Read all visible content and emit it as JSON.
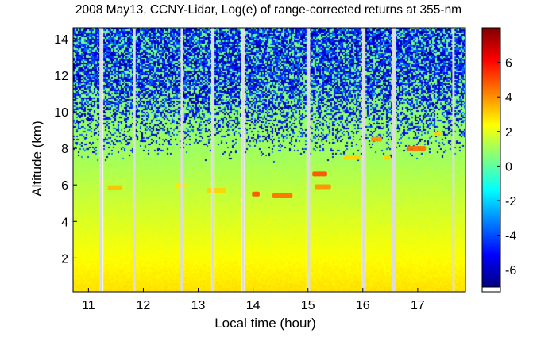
{
  "chart_data": {
    "type": "heatmap",
    "title": "2008 May13, CCNY-Lidar, Log(e) of range-corrected returns at 355-nm",
    "xlabel": "Local time (hour)",
    "ylabel": "Altitude (km)",
    "xlim": [
      10.72,
      17.87
    ],
    "ylim": [
      0.15,
      14.6
    ],
    "xticks": [
      11,
      12,
      13,
      14,
      15,
      16,
      17
    ],
    "yticks": [
      2,
      4,
      6,
      8,
      10,
      12,
      14
    ],
    "colorbar": {
      "range": [
        -7,
        8
      ],
      "ticks": [
        -6,
        -4,
        -2,
        0,
        2,
        4,
        6
      ],
      "colormap": "jet",
      "colors": [
        "#00007f",
        "#0000ff",
        "#007fff",
        "#00ffff",
        "#7fff7f",
        "#ffff00",
        "#ff7f00",
        "#ff0000",
        "#7f0000"
      ]
    },
    "data_gaps_hours": [
      [
        11.2,
        11.26
      ],
      [
        11.82,
        11.86
      ],
      [
        12.68,
        12.73
      ],
      [
        13.24,
        13.29
      ],
      [
        13.8,
        13.84
      ],
      [
        14.98,
        15.04
      ],
      [
        15.99,
        16.04
      ],
      [
        16.53,
        16.6
      ],
      [
        17.63,
        17.67
      ]
    ],
    "aerosol_layers": [
      {
        "x": [
          11.35,
          11.62
        ],
        "altitude": 5.85,
        "value": 3.3
      },
      {
        "x": [
          12.58,
          12.78
        ],
        "altitude": 5.95,
        "value": 2.7
      },
      {
        "x": [
          13.15,
          13.5
        ],
        "altitude": 5.7,
        "value": 3.0
      },
      {
        "x": [
          13.98,
          14.12
        ],
        "altitude": 5.5,
        "value": 5.0
      },
      {
        "x": [
          14.35,
          14.72
        ],
        "altitude": 5.4,
        "value": 4.5
      },
      {
        "x": [
          15.12,
          15.42
        ],
        "altitude": 5.9,
        "value": 4.0
      },
      {
        "x": [
          15.08,
          15.35
        ],
        "altitude": 6.6,
        "value": 5.0
      },
      {
        "x": [
          15.65,
          15.95
        ],
        "altitude": 7.5,
        "value": 3.0
      },
      {
        "x": [
          16.15,
          16.35
        ],
        "altitude": 8.5,
        "value": 4.0
      },
      {
        "x": [
          16.38,
          16.5
        ],
        "altitude": 7.5,
        "value": 3.0
      },
      {
        "x": [
          16.8,
          17.15
        ],
        "altitude": 8.0,
        "value": 4.5
      },
      {
        "x": [
          17.3,
          17.45
        ],
        "altitude": 8.8,
        "value": 3.0
      }
    ]
  }
}
